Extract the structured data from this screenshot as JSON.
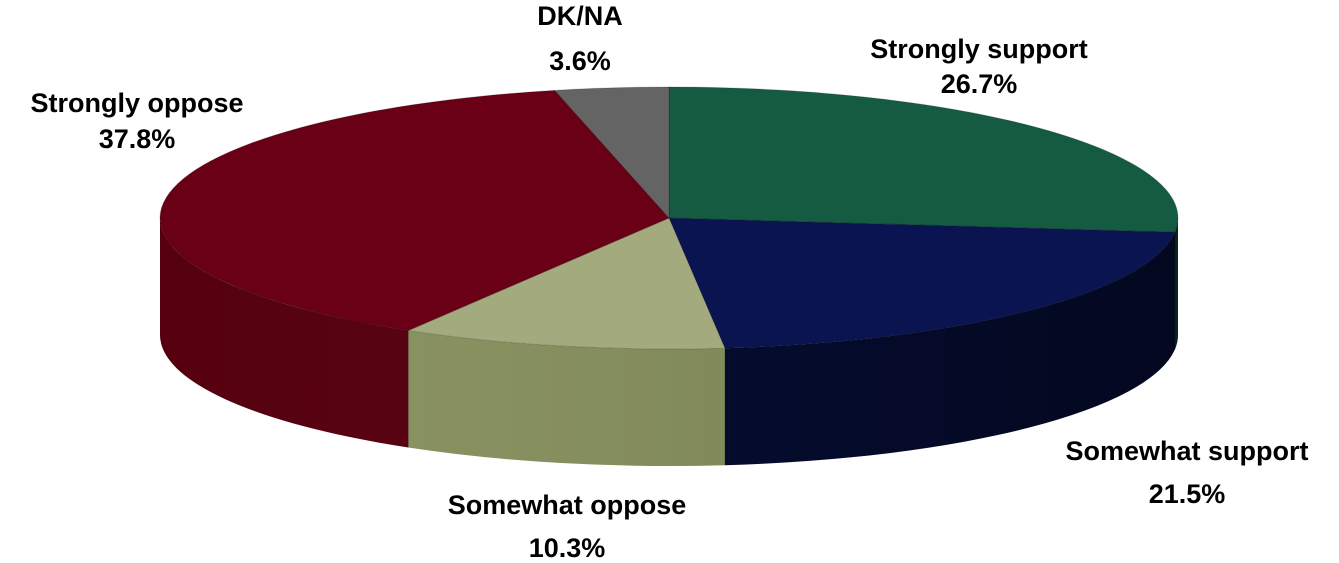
{
  "chart_data": {
    "type": "pie",
    "style": "3d",
    "start": "12 o'clock",
    "direction": "clockwise",
    "slices": [
      {
        "label": "Strongly support",
        "value": 26.7,
        "value_label": "26.7%",
        "color": "#145B42",
        "side_color": "#0B3A2A"
      },
      {
        "label": "Somewhat support",
        "value": 21.5,
        "value_label": "21.5%",
        "color": "#0A1450",
        "side_color": "#050C30"
      },
      {
        "label": "Somewhat oppose",
        "value": 10.3,
        "value_label": "10.3%",
        "color": "#A3AB7E",
        "side_color": "#88915F"
      },
      {
        "label": "Strongly oppose",
        "value": 37.8,
        "value_label": "37.8%",
        "color": "#690016",
        "side_color": "#56000F"
      },
      {
        "label": "DK/NA",
        "value": 3.6,
        "value_label": "3.6%",
        "color": "#646464",
        "side_color": "#4A4A4A"
      }
    ]
  }
}
